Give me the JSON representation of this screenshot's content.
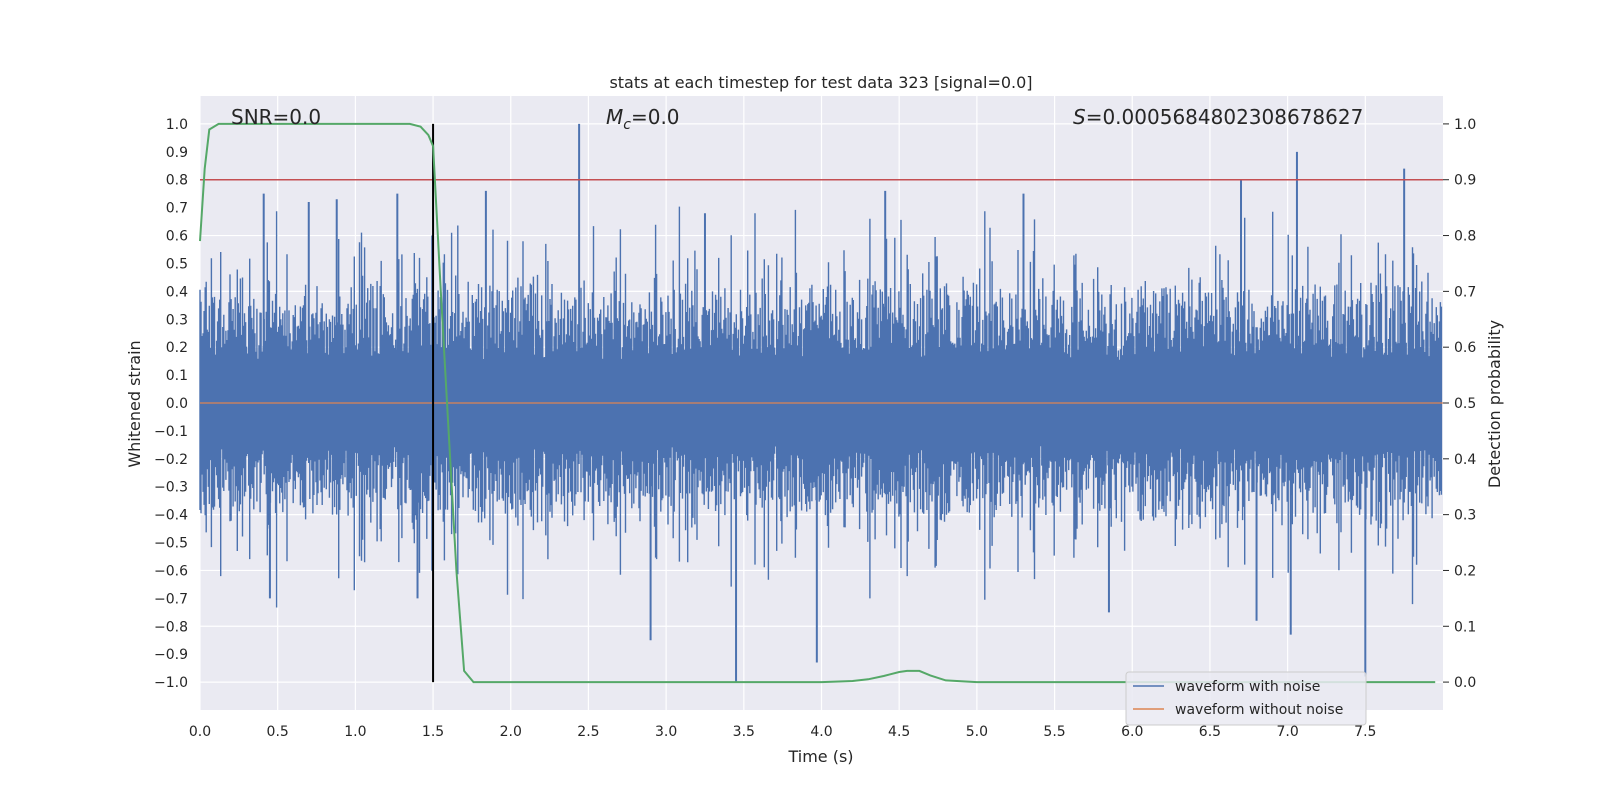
{
  "chart_data": {
    "type": "line",
    "title": "stats at each timestep for test data 323 [signal=0.0]",
    "xlabel": "Time (s)",
    "ylabel": "Whitened strain",
    "y2label": "Detection probability",
    "xlim": [
      0.0,
      8.0
    ],
    "ylim": [
      -1.1,
      1.1
    ],
    "y2lim": [
      -0.05,
      1.05
    ],
    "grid": true,
    "legend_location": "lower-right",
    "x_ticks": [
      "0.0",
      "0.5",
      "1.0",
      "1.5",
      "2.0",
      "2.5",
      "3.0",
      "3.5",
      "4.0",
      "4.5",
      "5.0",
      "5.5",
      "6.0",
      "6.5",
      "7.0",
      "7.5"
    ],
    "y_ticks": [
      "1.0",
      "0.9",
      "0.8",
      "0.7",
      "0.6",
      "0.5",
      "0.4",
      "0.3",
      "0.2",
      "0.1",
      "0.0",
      "−0.1",
      "−0.2",
      "−0.3",
      "−0.4",
      "−0.5",
      "−0.6",
      "−0.7",
      "−0.8",
      "−0.9",
      "−1.0"
    ],
    "y2_ticks": [
      "1.0",
      "0.9",
      "0.8",
      "0.7",
      "0.6",
      "0.5",
      "0.4",
      "0.3",
      "0.2",
      "0.1",
      "0.0"
    ],
    "annotations": {
      "snr": "SNR=0.0",
      "mc_symbol": "M",
      "mc_sub": "c",
      "mc_value": "=0.0",
      "s_symbol": "S",
      "s_value": "=0.0005684802308678627"
    },
    "threshold": {
      "value": 0.9,
      "axis": "y2",
      "color": "#c44e52"
    },
    "marker_line": {
      "x": 1.5,
      "color": "#000000"
    },
    "series": [
      {
        "name": "waveform with noise",
        "color": "#4c72b0",
        "kind": "noise",
        "samples": 1200,
        "typical_abs": [
          0.18,
          0.4
        ],
        "peaks": [
          {
            "x": 0.41,
            "y": 0.75
          },
          {
            "x": 0.7,
            "y": 0.72
          },
          {
            "x": 0.88,
            "y": 0.73
          },
          {
            "x": 1.27,
            "y": 0.75
          },
          {
            "x": 1.84,
            "y": 0.76
          },
          {
            "x": 2.44,
            "y": 1.0
          },
          {
            "x": 3.25,
            "y": 0.68
          },
          {
            "x": 4.41,
            "y": 0.76
          },
          {
            "x": 5.3,
            "y": 0.75
          },
          {
            "x": 6.7,
            "y": 0.8
          },
          {
            "x": 7.06,
            "y": 0.9
          },
          {
            "x": 7.75,
            "y": 0.84
          },
          {
            "x": 1.4,
            "y": -0.7
          },
          {
            "x": 2.9,
            "y": -0.85
          },
          {
            "x": 3.45,
            "y": -1.0
          },
          {
            "x": 3.97,
            "y": -0.93
          },
          {
            "x": 5.85,
            "y": -0.75
          },
          {
            "x": 6.8,
            "y": -0.78
          },
          {
            "x": 7.02,
            "y": -0.83
          },
          {
            "x": 7.5,
            "y": -0.98
          },
          {
            "x": 0.45,
            "y": -0.7
          }
        ]
      },
      {
        "name": "waveform without noise",
        "color": "#dd8452",
        "kind": "flat",
        "value": 0.0
      },
      {
        "name": "detection probability",
        "color": "#55a868",
        "axis": "y2",
        "x": [
          0.0,
          0.03,
          0.06,
          0.12,
          0.2,
          0.5,
          1.0,
          1.2,
          1.35,
          1.42,
          1.47,
          1.5,
          1.55,
          1.6,
          1.65,
          1.7,
          1.76,
          1.85,
          2.5,
          3.5,
          4.0,
          4.2,
          4.3,
          4.4,
          4.5,
          4.55,
          4.63,
          4.7,
          4.8,
          5.0,
          6.0,
          7.0,
          7.95
        ],
        "values": [
          0.79,
          0.92,
          0.99,
          1.0,
          1.0,
          1.0,
          1.0,
          1.0,
          1.0,
          0.995,
          0.98,
          0.96,
          0.7,
          0.45,
          0.2,
          0.02,
          0.0,
          0.0,
          0.0,
          0.0,
          0.0,
          0.002,
          0.005,
          0.011,
          0.018,
          0.02,
          0.02,
          0.012,
          0.003,
          0.0,
          0.0,
          0.0,
          0.0
        ]
      }
    ],
    "legend": [
      {
        "label": "waveform with noise",
        "color": "#4c72b0"
      },
      {
        "label": "waveform without noise",
        "color": "#dd8452"
      }
    ]
  }
}
